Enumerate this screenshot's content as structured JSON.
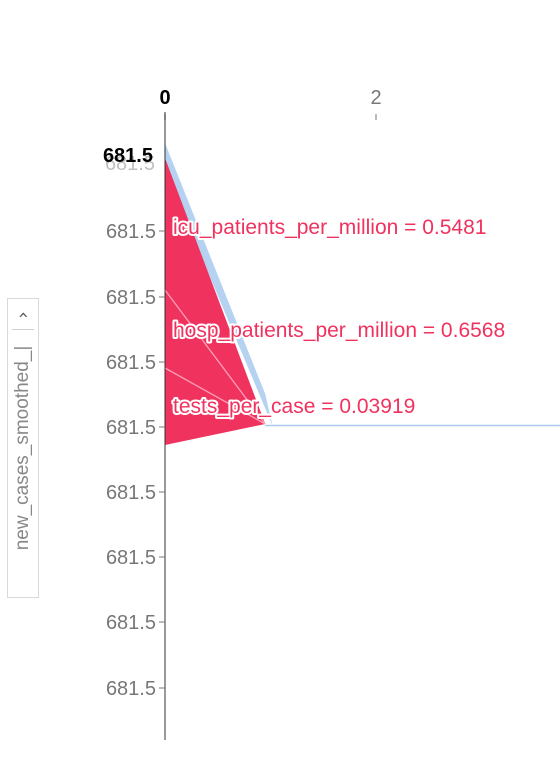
{
  "y_axis_title": "new_cases_smoothed_|",
  "chevron_icon": "chevron-right-icon",
  "colors": {
    "positive": "#f0325f",
    "positive_light": "#ff9fb6",
    "negative": "#a8cbef",
    "negative_light": "#d6e7f8",
    "axis": "#333333",
    "tick_text": "#777777",
    "label_text": "#f0325f"
  },
  "chart_data": {
    "type": "area",
    "x_axis": {
      "ticks": [
        0,
        2
      ],
      "tick_labels": [
        "0",
        "2"
      ],
      "range": [
        0,
        3.7
      ]
    },
    "y_axis": {
      "base_value_label": "681.5",
      "tick_labels": [
        "681.5",
        "681.5",
        "681.5",
        "681.5",
        "681.5",
        "681.5",
        "681.5",
        "681.5",
        "681.5"
      ]
    },
    "annotations": [
      {
        "name": "icu_patients_per_million",
        "value": "0.5481",
        "text": "icu_patients_per_million = 0.5481"
      },
      {
        "name": "hosp_patients_per_million",
        "value": "0.6568",
        "text": "hosp_patients_per_million = 0.6568"
      },
      {
        "name": "tests_per_case",
        "value": "0.03919",
        "text": "tests_per_case = 0.03919"
      }
    ]
  }
}
